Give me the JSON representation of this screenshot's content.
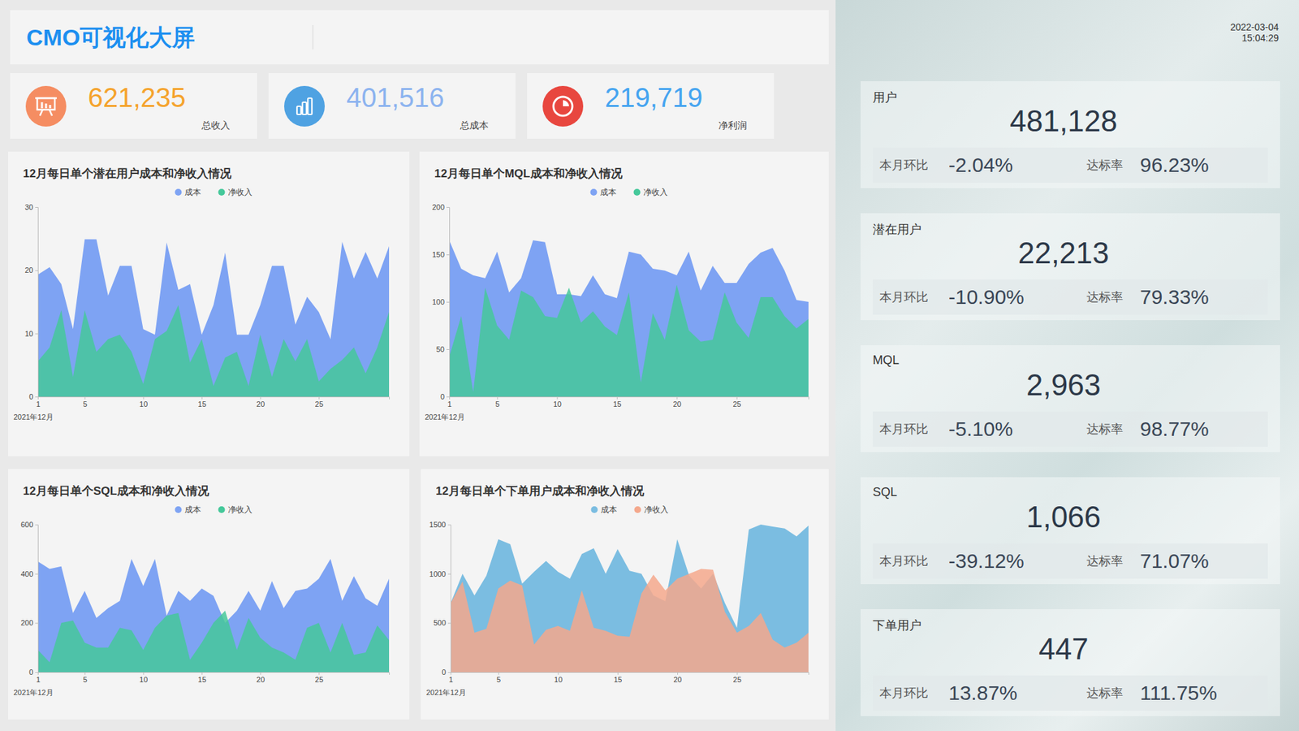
{
  "header": {
    "title": "CMO可视化大屏"
  },
  "kpis": [
    {
      "value": "621,235",
      "label": "总收入"
    },
    {
      "value": "401,516",
      "label": "总成本"
    },
    {
      "value": "219,719",
      "label": "净利润"
    }
  ],
  "timestamp": {
    "date": "2022-03-04",
    "time": "15:04:29"
  },
  "metrics": [
    {
      "label": "用户",
      "value": "481,128",
      "mom_label": "本月环比",
      "mom": "-2.04%",
      "rate_label": "达标率",
      "rate": "96.23%"
    },
    {
      "label": "潜在用户",
      "value": "22,213",
      "mom_label": "本月环比",
      "mom": "-10.90%",
      "rate_label": "达标率",
      "rate": "79.33%"
    },
    {
      "label": "MQL",
      "value": "2,963",
      "mom_label": "本月环比",
      "mom": "-5.10%",
      "rate_label": "达标率",
      "rate": "98.77%"
    },
    {
      "label": "SQL",
      "value": "1,066",
      "mom_label": "本月环比",
      "mom": "-39.12%",
      "rate_label": "达标率",
      "rate": "71.07%"
    },
    {
      "label": "下单用户",
      "value": "447",
      "mom_label": "本月环比",
      "mom": "13.87%",
      "rate_label": "达标率",
      "rate": "111.75%"
    }
  ],
  "chart_data": [
    {
      "type": "area",
      "title": "12月每日单个潜在用户成本和净收入情况",
      "x_label": "2021年12月",
      "x": [
        1,
        2,
        3,
        4,
        5,
        6,
        7,
        8,
        9,
        10,
        11,
        12,
        13,
        14,
        15,
        16,
        17,
        18,
        19,
        20,
        21,
        22,
        23,
        24,
        25,
        26,
        27,
        28,
        29,
        30,
        31
      ],
      "xlim": [
        1,
        31
      ],
      "xticks": [
        1,
        5,
        10,
        15,
        20,
        25
      ],
      "ylim": [
        0,
        30
      ],
      "yticks": [
        0,
        10,
        20,
        30
      ],
      "grid": false,
      "legend": "top",
      "series": [
        {
          "name": "成本",
          "color": "#7ea3f3",
          "values": [
            19.3,
            20.5,
            17.8,
            10.7,
            24.9,
            24.9,
            16,
            20.7,
            20.7,
            10.7,
            9.8,
            24.4,
            16.9,
            17.8,
            9.8,
            14.5,
            22.8,
            9.8,
            9.8,
            14.5,
            20.7,
            20.7,
            11.4,
            15.8,
            13.4,
            9.1,
            24.5,
            18.7,
            22.9,
            18.7,
            23.8
          ]
        },
        {
          "name": "净收入",
          "color": "#45c89a",
          "values": [
            5.6,
            7.8,
            13.7,
            3.1,
            13.7,
            7.1,
            9.1,
            9.8,
            7.1,
            2,
            9.1,
            10.4,
            14.5,
            5.4,
            9.1,
            1.7,
            6.2,
            7.1,
            1.7,
            9.8,
            3.1,
            9.1,
            5.6,
            9.1,
            2.4,
            4.4,
            5.8,
            7.8,
            3.7,
            7.8,
            13.4
          ]
        }
      ]
    },
    {
      "type": "area",
      "title": "12月每日单个MQL成本和净收入情况",
      "x_label": "2021年12月",
      "x": [
        1,
        2,
        3,
        4,
        5,
        6,
        7,
        8,
        9,
        10,
        11,
        12,
        13,
        14,
        15,
        16,
        17,
        18,
        19,
        20,
        21,
        22,
        23,
        24,
        25,
        26,
        27,
        28,
        29,
        30,
        31
      ],
      "xlim": [
        1,
        31
      ],
      "xticks": [
        1,
        5,
        10,
        15,
        20,
        25
      ],
      "ylim": [
        0,
        200
      ],
      "yticks": [
        0,
        50,
        100,
        150,
        200
      ],
      "grid": false,
      "legend": "top",
      "series": [
        {
          "name": "成本",
          "color": "#7ea3f3",
          "values": [
            165,
            135,
            128,
            125,
            153,
            110,
            125,
            165,
            163,
            108,
            108,
            106,
            128,
            108,
            104,
            153,
            150,
            135,
            133,
            128,
            153,
            112,
            138,
            120,
            120,
            140,
            152,
            157,
            133,
            102,
            100
          ]
        },
        {
          "name": "净收入",
          "color": "#45c89a",
          "values": [
            42,
            85,
            5,
            115,
            75,
            60,
            112,
            105,
            85,
            83,
            115,
            78,
            90,
            74,
            65,
            110,
            15,
            88,
            60,
            118,
            70,
            58,
            60,
            110,
            78,
            62,
            105,
            105,
            85,
            72,
            82
          ]
        }
      ]
    },
    {
      "type": "area",
      "title": "12月每日单个SQL成本和净收入情况",
      "x_label": "2021年12月",
      "x": [
        1,
        2,
        3,
        4,
        5,
        6,
        7,
        8,
        9,
        10,
        11,
        12,
        13,
        14,
        15,
        16,
        17,
        18,
        19,
        20,
        21,
        22,
        23,
        24,
        25,
        26,
        27,
        28,
        29,
        30,
        31
      ],
      "xlim": [
        1,
        31
      ],
      "xticks": [
        1,
        5,
        10,
        15,
        20,
        25
      ],
      "ylim": [
        0,
        600
      ],
      "yticks": [
        0,
        200,
        400,
        600
      ],
      "grid": false,
      "legend": "top",
      "series": [
        {
          "name": "成本",
          "color": "#7ea3f3",
          "values": [
            450,
            420,
            430,
            240,
            330,
            220,
            260,
            290,
            460,
            350,
            460,
            230,
            330,
            290,
            340,
            310,
            200,
            250,
            330,
            250,
            370,
            260,
            330,
            340,
            380,
            460,
            290,
            390,
            300,
            270,
            380
          ]
        },
        {
          "name": "净收入",
          "color": "#45c89a",
          "values": [
            90,
            40,
            200,
            210,
            120,
            100,
            100,
            180,
            170,
            90,
            180,
            230,
            240,
            50,
            120,
            200,
            250,
            90,
            220,
            140,
            100,
            80,
            50,
            180,
            200,
            80,
            200,
            70,
            80,
            190,
            130
          ]
        }
      ]
    },
    {
      "type": "area",
      "title": "12月每日单个下单用户成本和净收入情况",
      "x_label": "2021年12月",
      "x": [
        1,
        2,
        3,
        4,
        5,
        6,
        7,
        8,
        9,
        10,
        11,
        12,
        13,
        14,
        15,
        16,
        17,
        18,
        19,
        20,
        21,
        22,
        23,
        24,
        25,
        26,
        27,
        28,
        29,
        30,
        31
      ],
      "xlim": [
        1,
        31
      ],
      "xticks": [
        1,
        5,
        10,
        15,
        20,
        25
      ],
      "ylim": [
        0,
        1500
      ],
      "yticks": [
        0,
        500,
        1000,
        1500
      ],
      "grid": false,
      "legend": "top",
      "series": [
        {
          "name": "成本",
          "color": "#7bbde1",
          "values": [
            700,
            1000,
            780,
            980,
            1350,
            1300,
            900,
            1020,
            1130,
            1020,
            950,
            1200,
            1260,
            1000,
            1250,
            1030,
            1000,
            780,
            720,
            1350,
            980,
            850,
            1000,
            700,
            450,
            1450,
            1500,
            1480,
            1460,
            1380,
            1490
          ]
        },
        {
          "name": "净收入",
          "color": "#f4a88c",
          "values": [
            700,
            920,
            400,
            440,
            850,
            930,
            880,
            280,
            430,
            470,
            420,
            830,
            450,
            420,
            370,
            360,
            800,
            990,
            830,
            950,
            1000,
            1050,
            1040,
            610,
            400,
            470,
            600,
            330,
            250,
            300,
            400
          ]
        }
      ]
    }
  ]
}
